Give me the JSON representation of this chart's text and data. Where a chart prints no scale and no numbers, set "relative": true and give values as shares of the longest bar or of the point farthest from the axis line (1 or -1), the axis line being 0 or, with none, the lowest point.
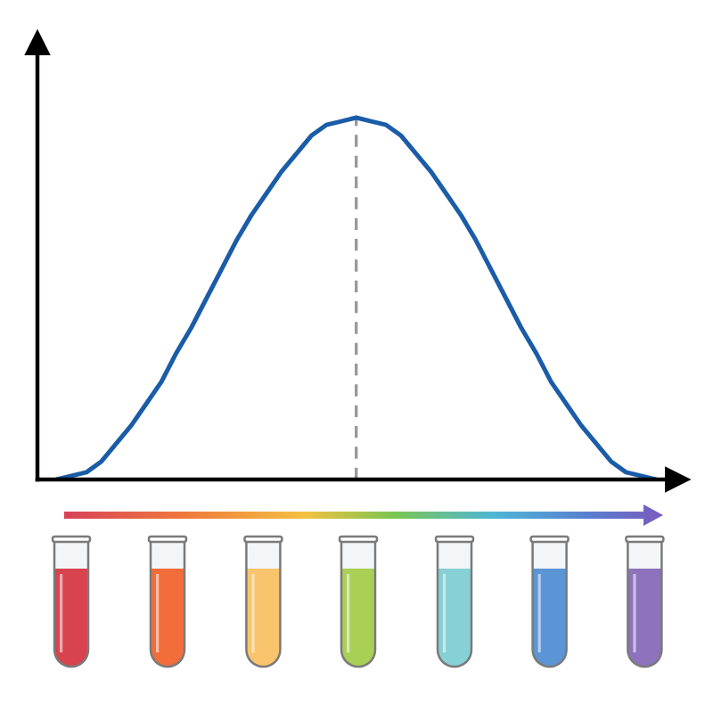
{
  "chart_data": {
    "type": "line",
    "relative": true,
    "categories": [
      null,
      null,
      null,
      null,
      null,
      null,
      null,
      null,
      null,
      null,
      null,
      null,
      null,
      null,
      null,
      null,
      null,
      null,
      null,
      null,
      null,
      null,
      null,
      null,
      null,
      null,
      null,
      null,
      null,
      null,
      null,
      null,
      null,
      null,
      null,
      null,
      null,
      null,
      null,
      null,
      null
    ],
    "series": [
      {
        "color": "#1a5ca8",
        "values": [
          0,
          0.01,
          0.02,
          0.05,
          0.1,
          0.15,
          0.21,
          0.27,
          0.35,
          0.42,
          0.5,
          0.58,
          0.66,
          0.73,
          0.79,
          0.85,
          0.9,
          0.95,
          0.98,
          0.99,
          1,
          0.99,
          0.98,
          0.95,
          0.9,
          0.85,
          0.79,
          0.73,
          0.66,
          0.58,
          0.5,
          0.42,
          0.35,
          0.27,
          0.21,
          0.15,
          0.1,
          0.05,
          0.02,
          0.01,
          0
        ]
      }
    ]
  }
}
